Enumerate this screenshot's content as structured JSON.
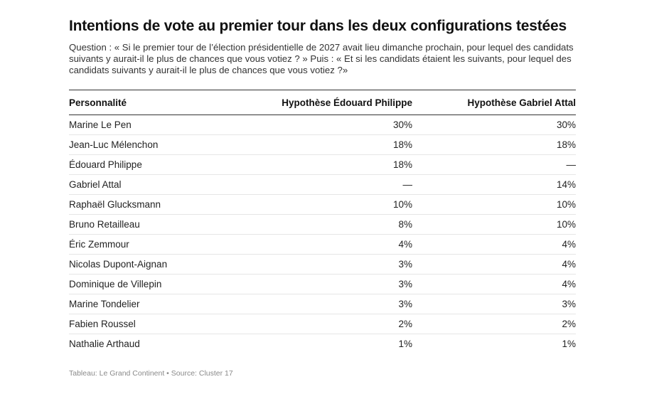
{
  "title": "Intentions de vote au premier tour dans les deux configurations testées",
  "subtitle": "Question : « Si le premier tour de l’élection présidentielle de 2027 avait lieu dimanche prochain, pour lequel des candidats suivants y aurait-il le plus de chances que vous votiez ? » Puis : « Et si les candidats étaient les suivants, pour lequel des candidats suivants y aurait-il le plus de chances que vous votiez ?»",
  "source": "Tableau: Le Grand Continent • Source: Cluster 17",
  "chart_data": {
    "type": "table",
    "columns": [
      "Personnalité",
      "Hypothèse Édouard Philippe",
      "Hypothèse Gabriel Attal"
    ],
    "rows": [
      [
        "Marine Le Pen",
        "30%",
        "30%"
      ],
      [
        "Jean-Luc Mélenchon",
        "18%",
        "18%"
      ],
      [
        "Édouard Philippe",
        "18%",
        "—"
      ],
      [
        "Gabriel Attal",
        "—",
        "14%"
      ],
      [
        "Raphaël Glucksmann",
        "10%",
        "10%"
      ],
      [
        "Bruno Retailleau",
        "8%",
        "10%"
      ],
      [
        "Éric Zemmour",
        "4%",
        "4%"
      ],
      [
        "Nicolas Dupont-Aignan",
        "3%",
        "4%"
      ],
      [
        "Dominique de Villepin",
        "3%",
        "4%"
      ],
      [
        "Marine Tondelier",
        "3%",
        "3%"
      ],
      [
        "Fabien Roussel",
        "2%",
        "2%"
      ],
      [
        "Nathalie Arthaud",
        "1%",
        "1%"
      ]
    ]
  }
}
